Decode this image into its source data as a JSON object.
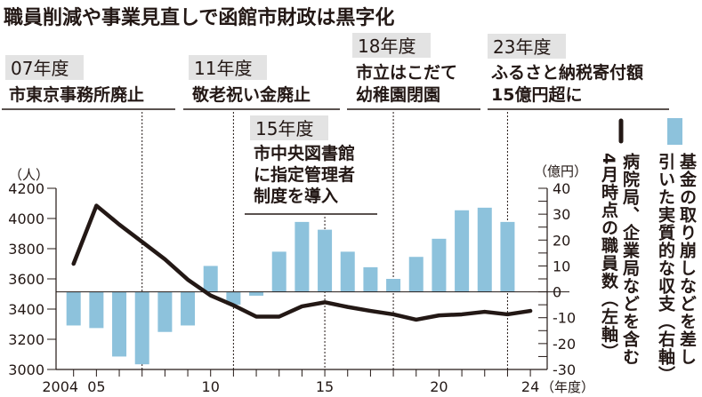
{
  "title": "職員削減や事業見直しで函館市財政は黒字化",
  "annotations": [
    {
      "year_label": "07年度",
      "lines": [
        "市東京事務所廃止"
      ],
      "year": 2007
    },
    {
      "year_label": "11年度",
      "lines": [
        "敬老祝い金廃止"
      ],
      "year": 2011
    },
    {
      "year_label": "15年度",
      "lines": [
        "市中央図書館",
        "に指定管理者",
        "制度を導入"
      ],
      "year": 2015
    },
    {
      "year_label": "18年度",
      "lines": [
        "市立はこだて",
        "幼稚園閉園"
      ],
      "year": 2018
    },
    {
      "year_label": "23年度",
      "lines": [
        "ふるさと納税寄付額",
        "15億円超に"
      ],
      "year": 2023
    }
  ],
  "legend": {
    "bar": [
      "基金の取り崩しなどを差し",
      "引いた実質的な収支（右軸）"
    ],
    "line": [
      "病院局、企業局などを含む",
      "4月時点の職員数（左軸）"
    ]
  },
  "colors": {
    "bar": "#8dc2dc",
    "line": "#231815",
    "label_bg": "#e3e3e3"
  },
  "chart_data": {
    "type": "bar+line",
    "title": "職員削減や事業見直しで函館市財政は黒字化",
    "x": [
      2004,
      2005,
      2006,
      2007,
      2008,
      2009,
      2010,
      2011,
      2012,
      2013,
      2014,
      2015,
      2016,
      2017,
      2018,
      2019,
      2020,
      2021,
      2022,
      2023,
      2024
    ],
    "x_tick_labels": [
      {
        "year": 2004,
        "label": "2004"
      },
      {
        "year": 2005,
        "label": "05"
      },
      {
        "year": 2010,
        "label": "10"
      },
      {
        "year": 2015,
        "label": "15"
      },
      {
        "year": 2020,
        "label": "20"
      },
      {
        "year": 2024,
        "label": "24"
      }
    ],
    "x_unit": "（年度）",
    "left_axis": {
      "unit": "（人）",
      "ylim": [
        3000,
        4200
      ],
      "ticks": [
        3000,
        3200,
        3400,
        3600,
        3800,
        4000,
        4200
      ]
    },
    "right_axis": {
      "unit": "（億円）",
      "ylim": [
        -30,
        40
      ],
      "ticks": [
        -30,
        -20,
        -10,
        0,
        10,
        20,
        30,
        40
      ]
    },
    "series": [
      {
        "name": "実質的な収支（右軸）",
        "type": "bar",
        "axis": "right",
        "values": [
          -13,
          -14,
          -25,
          -28,
          -15.5,
          -13,
          10,
          -5,
          -1.5,
          15.5,
          27,
          24,
          15.5,
          9.5,
          5,
          13.5,
          20.5,
          31.5,
          32.5,
          27,
          null
        ]
      },
      {
        "name": "職員数（左軸）",
        "type": "line",
        "axis": "left",
        "values": [
          3700,
          4085,
          3960,
          3845,
          3730,
          3595,
          3490,
          3425,
          3350,
          3350,
          3418,
          3445,
          3414,
          3388,
          3365,
          3330,
          3358,
          3365,
          3382,
          3365,
          3388
        ]
      }
    ]
  }
}
